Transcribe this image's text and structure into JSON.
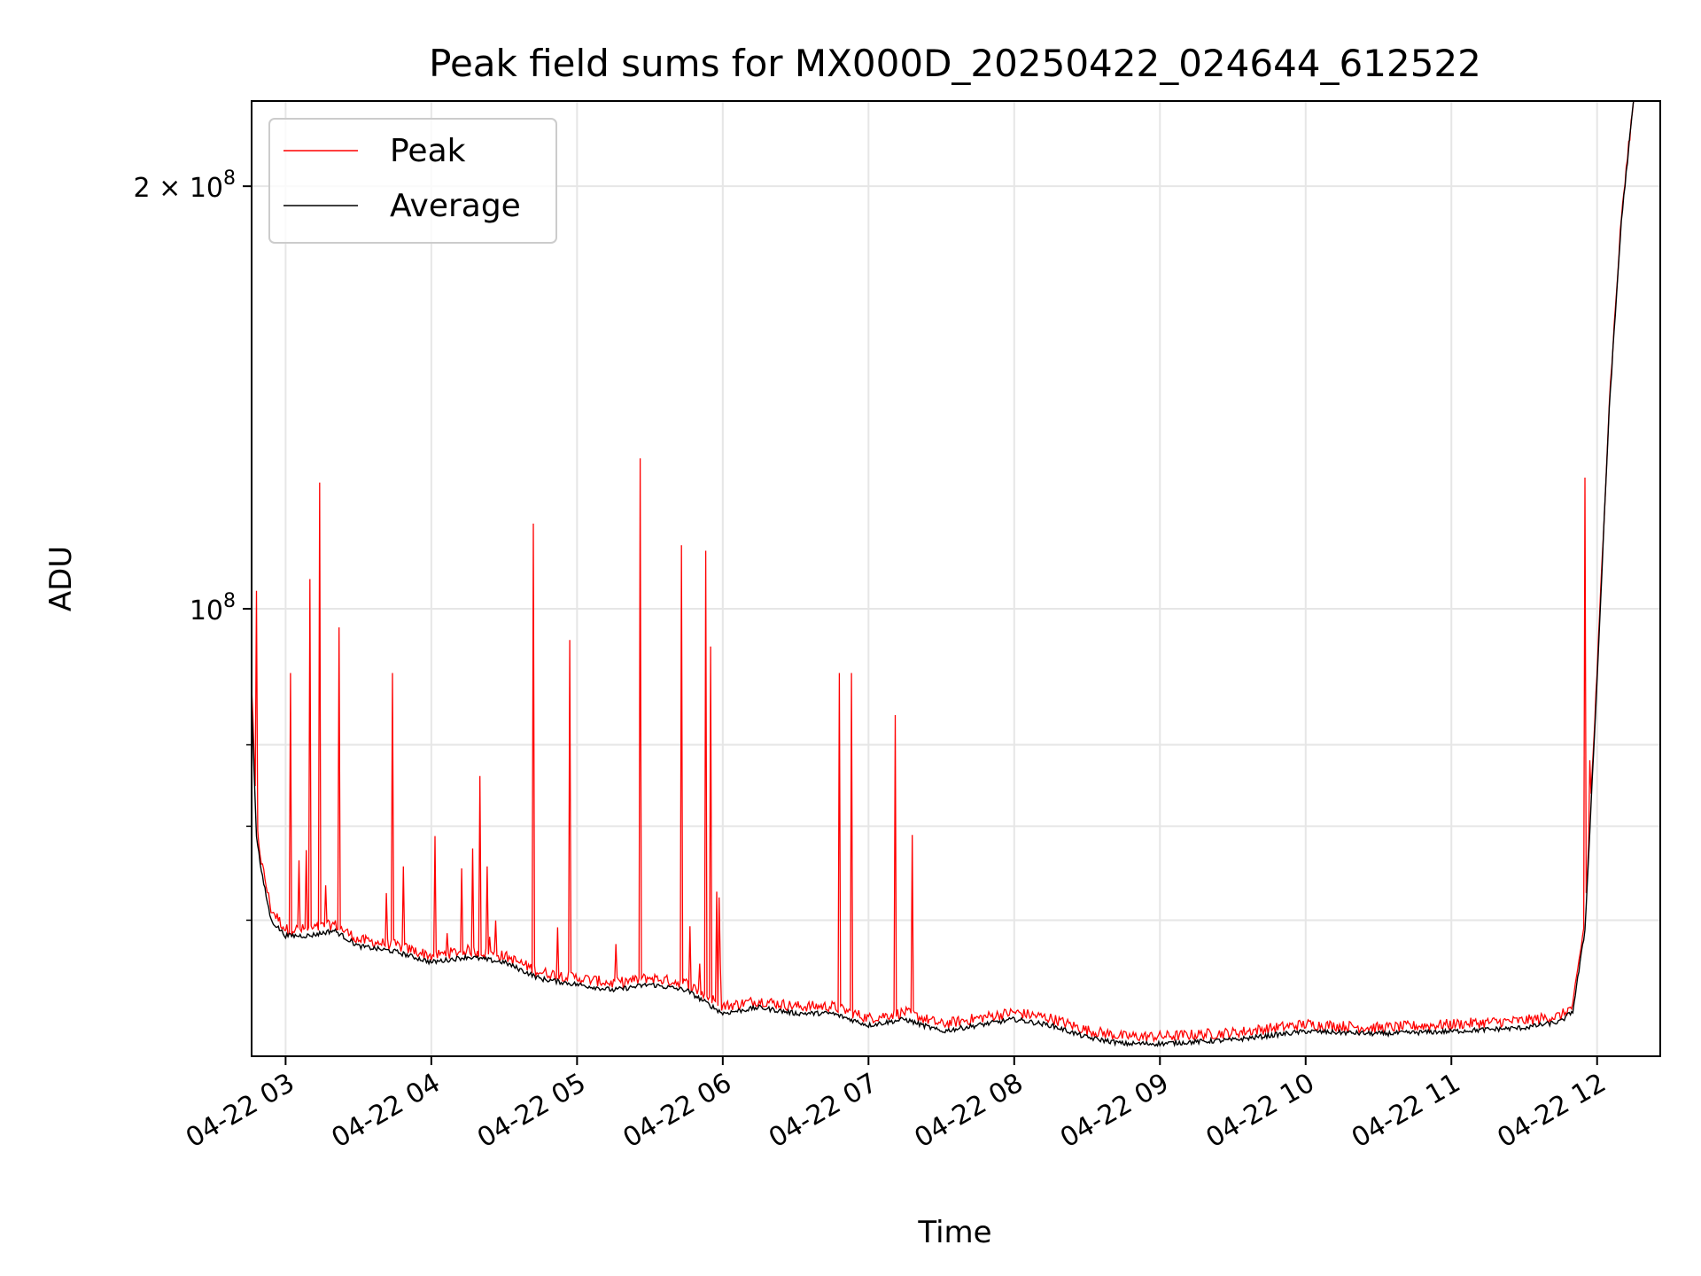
{
  "chart_data": {
    "type": "line",
    "title": "Peak field sums for MX000D_20250422_024644_612522",
    "xlabel": "Time",
    "ylabel": "ADU",
    "yscale": "log",
    "ylim": [
      48000000,
      230000000
    ],
    "xlim": [
      "04-22 02:46",
      "04-22 12:26"
    ],
    "grid": true,
    "legend_position": "top-left",
    "x_ticks": [
      "04-22 03",
      "04-22 04",
      "04-22 05",
      "04-22 06",
      "04-22 07",
      "04-22 08",
      "04-22 09",
      "04-22 10",
      "04-22 11",
      "04-22 12"
    ],
    "y_ticks": [
      {
        "value": 100000000,
        "base": "10",
        "exp": "8",
        "mantissa": ""
      },
      {
        "value": 200000000,
        "base": "10",
        "exp": "8",
        "mantissa": "2 × "
      }
    ],
    "series": [
      {
        "name": "Peak",
        "color": "#ff0000",
        "x": [
          "02:46",
          "02:48",
          "02:50",
          "02:54",
          "03:00",
          "03:10",
          "03:20",
          "03:30",
          "03:45",
          "04:00",
          "04:15",
          "04:30",
          "04:45",
          "05:00",
          "05:15",
          "05:30",
          "05:45",
          "06:00",
          "06:15",
          "06:30",
          "06:45",
          "07:00",
          "07:15",
          "07:30",
          "07:45",
          "08:00",
          "08:15",
          "08:30",
          "08:45",
          "09:00",
          "09:30",
          "10:00",
          "10:30",
          "11:00",
          "11:30",
          "11:45",
          "11:50",
          "11:55",
          "12:00",
          "12:05",
          "12:10",
          "12:15"
        ],
        "y": [
          88000000,
          70000000,
          66000000,
          61000000,
          59000000,
          59000000,
          59500000,
          58000000,
          57500000,
          56500000,
          57000000,
          56500000,
          55000000,
          54500000,
          54000000,
          54500000,
          54000000,
          52000000,
          52500000,
          52000000,
          52000000,
          51000000,
          51500000,
          50500000,
          51000000,
          51500000,
          51000000,
          50000000,
          49500000,
          49500000,
          49800000,
          50500000,
          50200000,
          50500000,
          50800000,
          51200000,
          52000000,
          60000000,
          90000000,
          140000000,
          190000000,
          230000000
        ],
        "spikes": [
          {
            "x": "02:48",
            "y": 103000000
          },
          {
            "x": "03:02",
            "y": 90000000
          },
          {
            "x": "03:10",
            "y": 105000000
          },
          {
            "x": "03:14",
            "y": 123000000
          },
          {
            "x": "03:22",
            "y": 97000000
          },
          {
            "x": "03:44",
            "y": 90000000
          },
          {
            "x": "04:20",
            "y": 76000000
          },
          {
            "x": "04:42",
            "y": 115000000
          },
          {
            "x": "04:57",
            "y": 95000000
          },
          {
            "x": "05:26",
            "y": 128000000
          },
          {
            "x": "05:43",
            "y": 111000000
          },
          {
            "x": "05:53",
            "y": 110000000
          },
          {
            "x": "05:55",
            "y": 94000000
          },
          {
            "x": "06:48",
            "y": 90000000
          },
          {
            "x": "06:53",
            "y": 90000000
          },
          {
            "x": "07:11",
            "y": 84000000
          },
          {
            "x": "07:18",
            "y": 69000000
          },
          {
            "x": "11:55",
            "y": 124000000
          },
          {
            "x": "11:57",
            "y": 78000000
          }
        ]
      },
      {
        "name": "Average",
        "color": "#000000",
        "x": [
          "02:46",
          "02:48",
          "02:50",
          "02:54",
          "03:00",
          "03:10",
          "03:20",
          "03:30",
          "03:45",
          "04:00",
          "04:15",
          "04:30",
          "04:45",
          "05:00",
          "05:15",
          "05:30",
          "05:45",
          "06:00",
          "06:15",
          "06:30",
          "06:45",
          "07:00",
          "07:15",
          "07:30",
          "07:45",
          "08:00",
          "08:15",
          "08:30",
          "08:45",
          "09:00",
          "09:30",
          "10:00",
          "10:30",
          "11:00",
          "11:30",
          "11:45",
          "11:50",
          "11:55",
          "12:00",
          "12:05",
          "12:10",
          "12:15"
        ],
        "y": [
          86000000,
          69000000,
          65000000,
          60000000,
          58500000,
          58500000,
          59000000,
          57500000,
          57000000,
          56000000,
          56500000,
          56000000,
          54500000,
          54000000,
          53500000,
          54000000,
          53500000,
          51500000,
          52000000,
          51500000,
          51500000,
          50500000,
          51000000,
          50000000,
          50500000,
          51000000,
          50500000,
          49500000,
          49000000,
          49000000,
          49300000,
          50000000,
          49800000,
          50000000,
          50300000,
          50800000,
          51700000,
          59000000,
          89000000,
          139000000,
          189000000,
          230000000
        ]
      }
    ]
  }
}
